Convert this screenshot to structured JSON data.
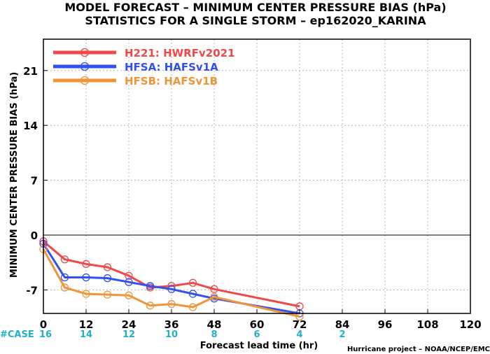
{
  "chart_data": {
    "type": "line",
    "title": [
      "MODEL FORECAST – MINIMUM CENTER PRESSURE BIAS (hPa)",
      "STATISTICS FOR A SINGLE STORM – ep162020_KARINA"
    ],
    "xlabel": "Forecast lead time (hr)",
    "ylabel": "MINIMUM CENTER PRESSURE BIAS (hPa)",
    "xlim": [
      0,
      120
    ],
    "ylim": [
      -10,
      25
    ],
    "xticks": [
      0,
      12,
      24,
      36,
      48,
      60,
      72,
      84,
      96,
      108,
      120
    ],
    "yticks": [
      -7,
      0,
      7,
      14,
      21
    ],
    "grid": true,
    "legend_position": "top-left",
    "case_counts": {
      "label": "#CASE",
      "x": [
        0,
        12,
        24,
        36,
        48,
        60,
        72,
        84
      ],
      "values": [
        "16",
        "14",
        "12",
        "10",
        "8",
        "6",
        "4",
        "2"
      ]
    },
    "credit": "Hurricane project – NOAA/NCEP/EMC",
    "series": [
      {
        "name": "H221: HWRFv2021",
        "color": "#f04848",
        "x": [
          0,
          6,
          12,
          18,
          24,
          30,
          36,
          42,
          48,
          72
        ],
        "values": [
          -0.8,
          -3.1,
          -3.7,
          -4.1,
          -5.2,
          -6.7,
          -6.5,
          -6.1,
          -6.9,
          -9.1
        ]
      },
      {
        "name": "HFSA: HAFSv1A",
        "color": "#3050f0",
        "x": [
          0,
          6,
          12,
          18,
          24,
          30,
          36,
          42,
          48,
          72
        ],
        "values": [
          -1.1,
          -5.4,
          -5.4,
          -5.5,
          -6.0,
          -6.5,
          -6.9,
          -7.5,
          -8.1,
          -10.0
        ]
      },
      {
        "name": "HFSB: HAFSv1B",
        "color": "#f09438",
        "x": [
          0,
          6,
          12,
          18,
          24,
          30,
          36,
          42,
          48,
          72
        ],
        "values": [
          -1.8,
          -6.7,
          -7.5,
          -7.6,
          -7.7,
          -9.0,
          -8.8,
          -9.2,
          -7.9,
          -10.4
        ]
      }
    ]
  }
}
